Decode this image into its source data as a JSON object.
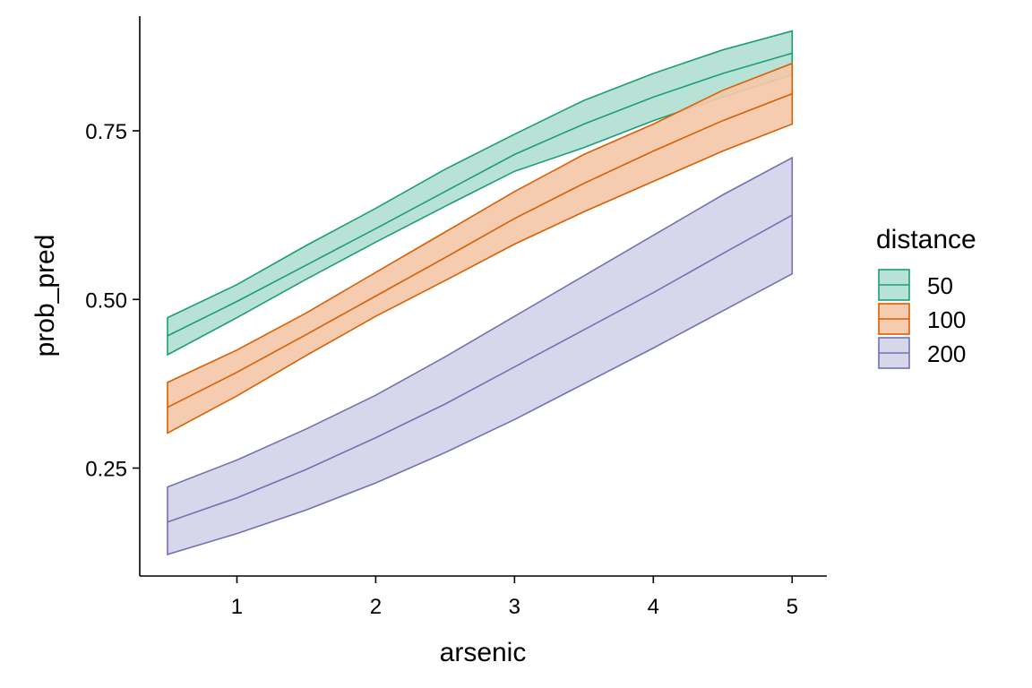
{
  "chart_data": {
    "type": "area",
    "xlabel": "arsenic",
    "ylabel": "prob_pred",
    "xlim": [
      0.3,
      5.25
    ],
    "ylim": [
      0.09,
      0.92
    ],
    "xticks": [
      1,
      2,
      3,
      4,
      5
    ],
    "xtick_labels": [
      "1",
      "2",
      "3",
      "4",
      "5"
    ],
    "yticks": [
      0.25,
      0.5,
      0.75
    ],
    "ytick_labels": [
      "0.25",
      "0.50",
      "0.75"
    ],
    "grid": false,
    "legend": {
      "title": "distance",
      "position": "right"
    },
    "x": [
      0.5,
      1.0,
      1.5,
      2.0,
      2.5,
      3.0,
      3.5,
      4.0,
      4.5,
      5.0
    ],
    "series": [
      {
        "name": "50",
        "color": "#1b9e77",
        "fill": "#b3e0d3",
        "fit": [
          0.446,
          0.497,
          0.551,
          0.605,
          0.66,
          0.715,
          0.76,
          0.8,
          0.835,
          0.865
        ],
        "upper": [
          0.473,
          0.522,
          0.58,
          0.635,
          0.693,
          0.745,
          0.795,
          0.835,
          0.87,
          0.898
        ],
        "lower": [
          0.418,
          0.473,
          0.53,
          0.585,
          0.638,
          0.69,
          0.725,
          0.765,
          0.8,
          0.833
        ]
      },
      {
        "name": "100",
        "color": "#d95f02",
        "fill": "#f4c8a8",
        "fit": [
          0.34,
          0.392,
          0.448,
          0.505,
          0.562,
          0.62,
          0.672,
          0.72,
          0.765,
          0.805
        ],
        "upper": [
          0.377,
          0.425,
          0.48,
          0.54,
          0.6,
          0.66,
          0.715,
          0.76,
          0.81,
          0.85
        ],
        "lower": [
          0.302,
          0.357,
          0.417,
          0.475,
          0.528,
          0.582,
          0.63,
          0.675,
          0.72,
          0.76
        ]
      },
      {
        "name": "200",
        "color": "#7570b3",
        "fill": "#d4d4ea",
        "fit": [
          0.17,
          0.206,
          0.248,
          0.295,
          0.345,
          0.4,
          0.455,
          0.51,
          0.568,
          0.625
        ],
        "upper": [
          0.222,
          0.262,
          0.308,
          0.358,
          0.415,
          0.475,
          0.535,
          0.595,
          0.655,
          0.71
        ],
        "lower": [
          0.122,
          0.153,
          0.188,
          0.228,
          0.273,
          0.322,
          0.375,
          0.428,
          0.483,
          0.538
        ]
      }
    ]
  }
}
